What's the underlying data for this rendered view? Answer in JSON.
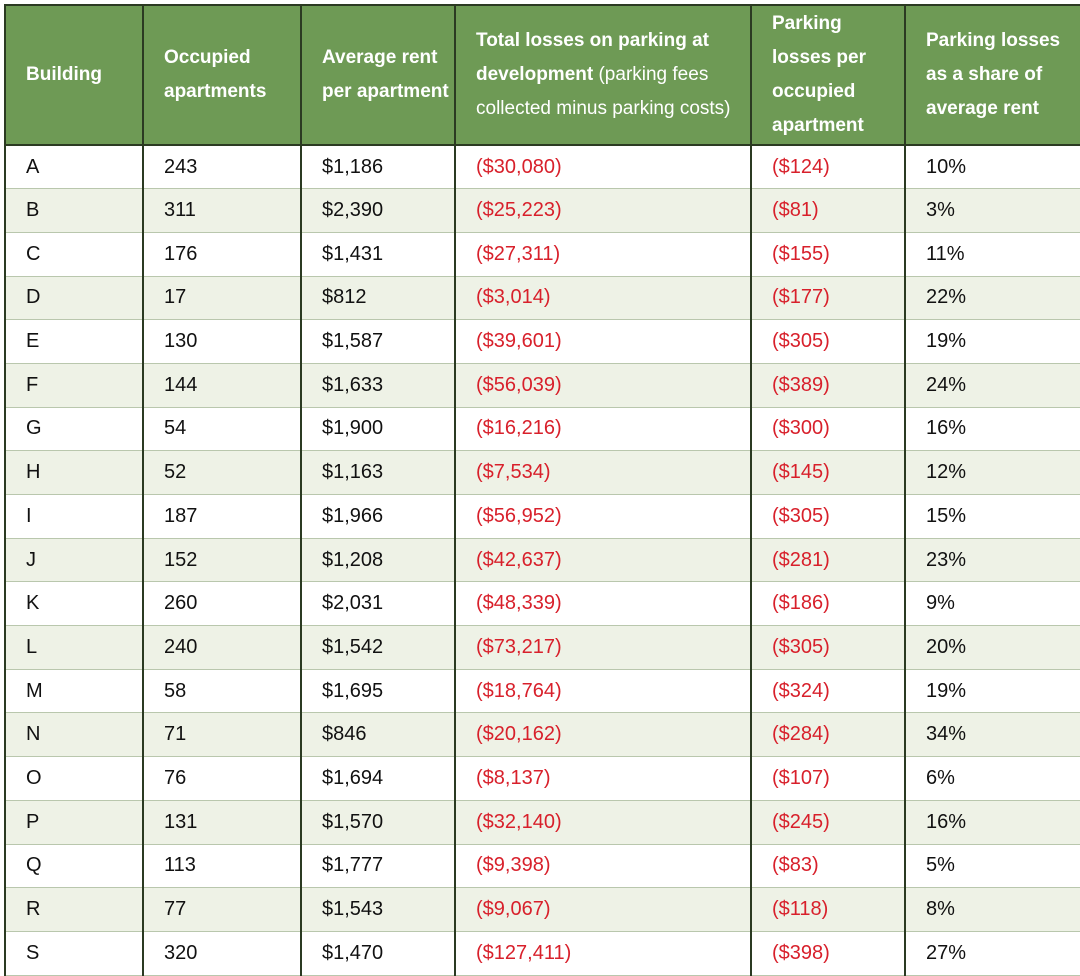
{
  "headers": {
    "building": "Building",
    "occupied": "Occupied apartments",
    "avg_rent": "Average rent per apartment",
    "total_losses_bold": "Total losses on parking at development",
    "total_losses_light": " (parking fees collected minus parking costs)",
    "losses_per_apt": "Parking losses per occupied apartment",
    "losses_share": "Parking losses as a share of average rent"
  },
  "rows": [
    {
      "building": "A",
      "occupied": "243",
      "avg_rent": "$1,186",
      "total_losses": "($30,080)",
      "losses_per_apt": "($124)",
      "share": "10%"
    },
    {
      "building": "B",
      "occupied": "311",
      "avg_rent": "$2,390",
      "total_losses": "($25,223)",
      "losses_per_apt": "($81)",
      "share": "3%"
    },
    {
      "building": "C",
      "occupied": "176",
      "avg_rent": "$1,431",
      "total_losses": "($27,311)",
      "losses_per_apt": "($155)",
      "share": "11%"
    },
    {
      "building": "D",
      "occupied": "17",
      "avg_rent": "$812",
      "total_losses": "($3,014)",
      "losses_per_apt": "($177)",
      "share": "22%"
    },
    {
      "building": "E",
      "occupied": "130",
      "avg_rent": "$1,587",
      "total_losses": "($39,601)",
      "losses_per_apt": "($305)",
      "share": "19%"
    },
    {
      "building": "F",
      "occupied": "144",
      "avg_rent": "$1,633",
      "total_losses": "($56,039)",
      "losses_per_apt": "($389)",
      "share": "24%"
    },
    {
      "building": "G",
      "occupied": "54",
      "avg_rent": "$1,900",
      "total_losses": "($16,216)",
      "losses_per_apt": "($300)",
      "share": "16%"
    },
    {
      "building": "H",
      "occupied": "52",
      "avg_rent": "$1,163",
      "total_losses": "($7,534)",
      "losses_per_apt": "($145)",
      "share": "12%"
    },
    {
      "building": "I",
      "occupied": "187",
      "avg_rent": "$1,966",
      "total_losses": "($56,952)",
      "losses_per_apt": "($305)",
      "share": "15%"
    },
    {
      "building": "J",
      "occupied": "152",
      "avg_rent": "$1,208",
      "total_losses": "($42,637)",
      "losses_per_apt": "($281)",
      "share": "23%"
    },
    {
      "building": "K",
      "occupied": "260",
      "avg_rent": "$2,031",
      "total_losses": "($48,339)",
      "losses_per_apt": "($186)",
      "share": "9%"
    },
    {
      "building": "L",
      "occupied": "240",
      "avg_rent": "$1,542",
      "total_losses": "($73,217)",
      "losses_per_apt": "($305)",
      "share": "20%"
    },
    {
      "building": "M",
      "occupied": "58",
      "avg_rent": "$1,695",
      "total_losses": "($18,764)",
      "losses_per_apt": "($324)",
      "share": "19%"
    },
    {
      "building": "N",
      "occupied": "71",
      "avg_rent": "$846",
      "total_losses": "($20,162)",
      "losses_per_apt": "($284)",
      "share": "34%"
    },
    {
      "building": "O",
      "occupied": "76",
      "avg_rent": "$1,694",
      "total_losses": "($8,137)",
      "losses_per_apt": "($107)",
      "share": "6%"
    },
    {
      "building": "P",
      "occupied": "131",
      "avg_rent": "$1,570",
      "total_losses": "($32,140)",
      "losses_per_apt": "($245)",
      "share": "16%"
    },
    {
      "building": "Q",
      "occupied": "113",
      "avg_rent": "$1,777",
      "total_losses": "($9,398)",
      "losses_per_apt": "($83)",
      "share": "5%"
    },
    {
      "building": "R",
      "occupied": "77",
      "avg_rent": "$1,543",
      "total_losses": "($9,067)",
      "losses_per_apt": "($118)",
      "share": "8%"
    },
    {
      "building": "S",
      "occupied": "320",
      "avg_rent": "$1,470",
      "total_losses": "($127,411)",
      "losses_per_apt": "($398)",
      "share": "27%"
    }
  ],
  "colors": {
    "header_bg": "#6e9a55",
    "header_text": "#ffffff",
    "alt_row_bg": "#eef2e6",
    "negative_text": "#d8202b",
    "border": "#2b3a22"
  }
}
